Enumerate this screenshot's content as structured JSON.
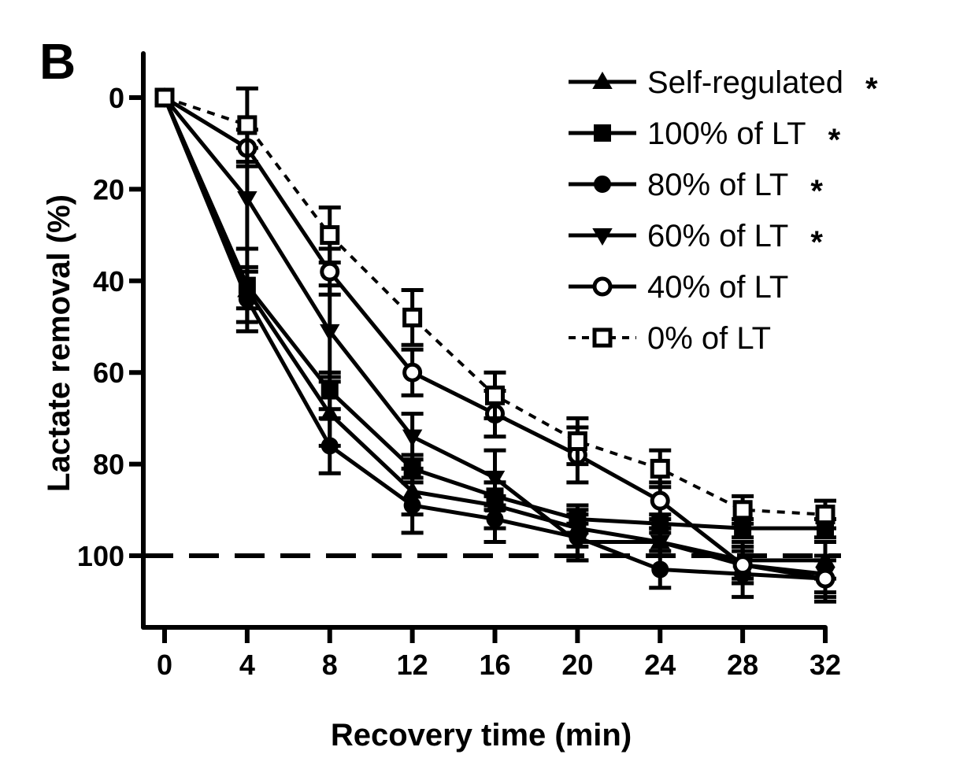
{
  "panel_label": "B",
  "chart_data": {
    "type": "line",
    "title": "",
    "xlabel": "Recovery time (min)",
    "ylabel": "Lactate removal (%)",
    "x": [
      0,
      4,
      8,
      12,
      16,
      20,
      24,
      28,
      32
    ],
    "xticks": [
      "0",
      "4",
      "8",
      "12",
      "16",
      "20",
      "24",
      "28",
      "32"
    ],
    "yticks": [
      "0",
      "20",
      "40",
      "60",
      "80",
      "100"
    ],
    "xlim": [
      0,
      32
    ],
    "ylim": [
      0,
      110
    ],
    "y_inverted": true,
    "reference_line": {
      "y": 100,
      "style": "dashed"
    },
    "grid": false,
    "legend_position": "top-right",
    "series": [
      {
        "name": "Self-regulated",
        "marker": "triangle-up",
        "filled": true,
        "line": "solid",
        "significance": "*",
        "values": [
          0,
          42,
          69,
          86,
          89,
          94,
          97,
          101,
          101
        ],
        "errors": [
          0,
          4,
          7,
          5,
          5,
          4,
          3,
          4,
          4
        ]
      },
      {
        "name": "100% of LT",
        "marker": "square",
        "filled": true,
        "line": "solid",
        "significance": "*",
        "values": [
          0,
          41,
          64,
          81,
          87,
          92,
          93,
          94,
          94
        ],
        "errors": [
          0,
          8,
          4,
          3,
          3,
          3,
          2,
          2,
          2
        ]
      },
      {
        "name": "80% of LT",
        "marker": "circle",
        "filled": true,
        "line": "solid",
        "significance": "*",
        "values": [
          0,
          44,
          76,
          89,
          92,
          96,
          103,
          104,
          105
        ],
        "errors": [
          0,
          7,
          6,
          6,
          5,
          5,
          4,
          5,
          5
        ]
      },
      {
        "name": "60% of LT",
        "marker": "triangle-down",
        "filled": true,
        "line": "solid",
        "significance": "*",
        "values": [
          0,
          22,
          51,
          74,
          83,
          97,
          97,
          102,
          104
        ],
        "errors": [
          0,
          11,
          10,
          5,
          6,
          4,
          3,
          4,
          4
        ]
      },
      {
        "name": "40% of LT",
        "marker": "circle",
        "filled": false,
        "line": "solid",
        "significance": "",
        "values": [
          0,
          11,
          38,
          60,
          69,
          78,
          88,
          102,
          105
        ],
        "errors": [
          0,
          4,
          5,
          5,
          5,
          6,
          4,
          4,
          4
        ]
      },
      {
        "name": "0% of LT",
        "marker": "square",
        "filled": false,
        "line": "dotted",
        "significance": "",
        "values": [
          0,
          6,
          30,
          48,
          65,
          75,
          81,
          90,
          91
        ],
        "errors": [
          0,
          8,
          6,
          6,
          5,
          5,
          4,
          3,
          3
        ]
      }
    ]
  }
}
